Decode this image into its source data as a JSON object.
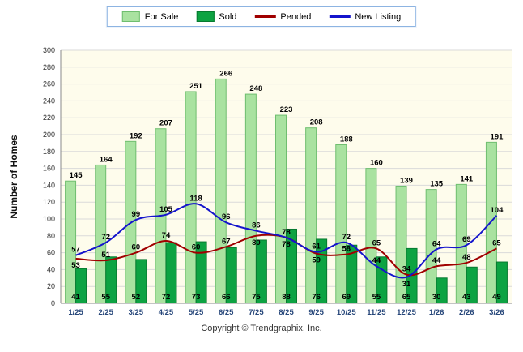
{
  "footer": "Copyright © Trendgraphix, Inc.",
  "colors": {
    "plot_bg": "#FEFCEC",
    "grid": "#DADADA",
    "axis": "#8A8A8A",
    "xtick": "#27477A",
    "label": "#000000"
  },
  "chart_data": {
    "type": "bar",
    "title": "",
    "xlabel": "",
    "ylabel": "Number of Homes",
    "ylim": [
      0,
      300
    ],
    "ytick_step": 20,
    "grid": true,
    "legend_position": "top",
    "categories": [
      "1/25",
      "2/25",
      "3/25",
      "4/25",
      "5/25",
      "6/25",
      "7/25",
      "8/25",
      "9/25",
      "10/25",
      "11/25",
      "12/25",
      "1/26",
      "2/26",
      "3/26"
    ],
    "series": [
      {
        "name": "For Sale",
        "type": "bar",
        "label_pos": "above",
        "color": "#A9E2A0",
        "border": "#6FBE6F",
        "values": [
          145,
          164,
          192,
          207,
          251,
          266,
          248,
          223,
          208,
          188,
          160,
          139,
          135,
          141,
          191
        ]
      },
      {
        "name": "Sold",
        "type": "bar",
        "label_pos": "base",
        "color": "#0DA342",
        "border": "#077A30",
        "values": [
          41,
          55,
          52,
          72,
          73,
          66,
          75,
          88,
          76,
          69,
          55,
          65,
          30,
          43,
          49
        ]
      },
      {
        "name": "Pended",
        "type": "line",
        "color": "#A00000",
        "values": [
          53,
          51,
          60,
          74,
          60,
          67,
          80,
          78,
          59,
          58,
          65,
          34,
          44,
          48,
          65
        ]
      },
      {
        "name": "New Listing",
        "type": "line",
        "color": "#1414CC",
        "values": [
          57,
          72,
          99,
          105,
          118,
          96,
          86,
          78,
          61,
          72,
          44,
          31,
          64,
          69,
          104
        ]
      }
    ]
  }
}
